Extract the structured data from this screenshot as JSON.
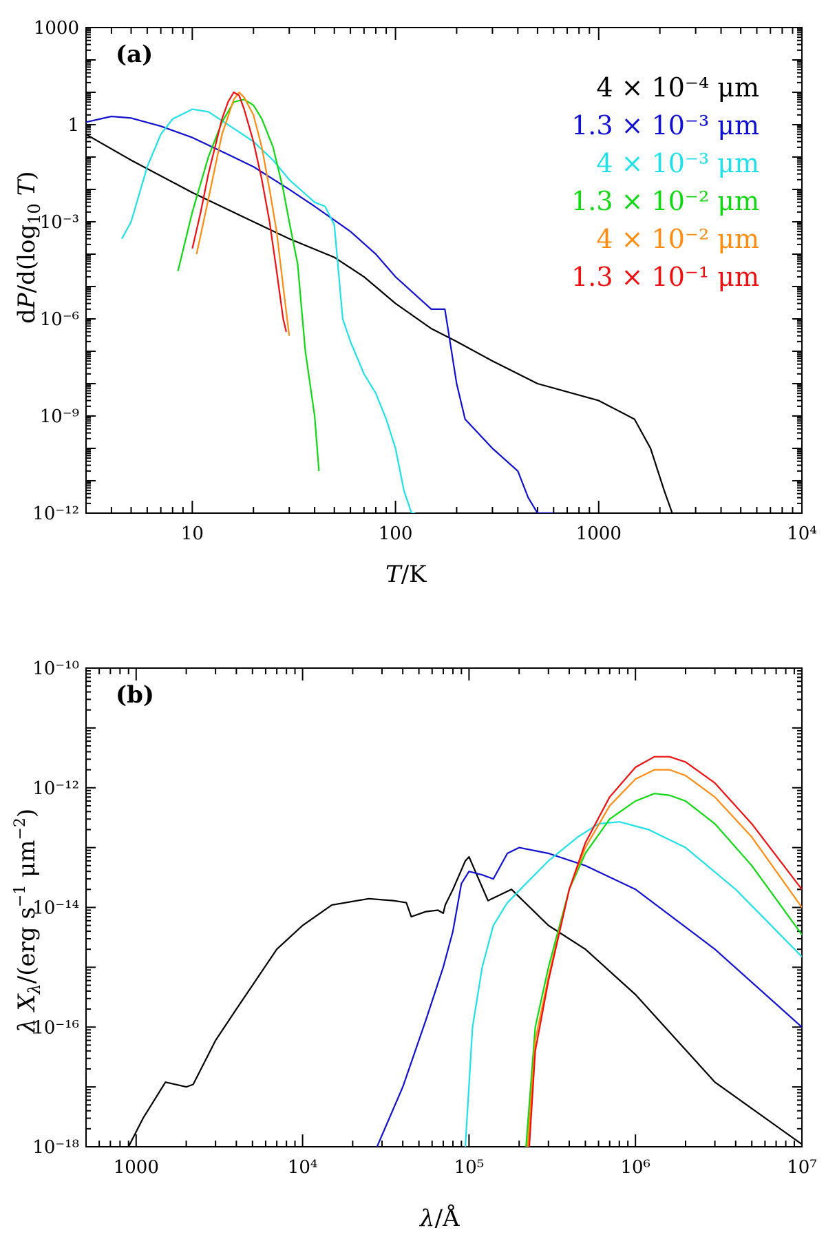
{
  "colors": {
    "black": "#000000",
    "blue": "#1010d0",
    "cyan": "#20e0e8",
    "green": "#10d810",
    "orange": "#ff8c10",
    "red": "#ee1010"
  },
  "chart_data": [
    {
      "type": "line",
      "panel_label": "(a)",
      "xlabel": "T/K",
      "ylabel": "dP/d(log10 T)",
      "xscale": "log",
      "yscale": "log",
      "xlim": [
        3,
        10000
      ],
      "ylim": [
        1e-12,
        1000
      ],
      "x_tick_labels": [
        "10",
        "100",
        "1000",
        "10⁴"
      ],
      "x_tick_values": [
        10,
        100,
        1000,
        10000
      ],
      "y_tick_labels": [
        "10⁻¹²",
        "10⁻⁹",
        "10⁻⁶",
        "10⁻³",
        "1",
        "1000"
      ],
      "y_tick_values": [
        1e-12,
        1e-09,
        1e-06,
        0.001,
        1,
        1000
      ],
      "legend": "top-right",
      "series": [
        {
          "name": "4 × 10⁻⁴ μm",
          "color": "black",
          "x": [
            3,
            5,
            10,
            20,
            30,
            50,
            70,
            100,
            150,
            200,
            300,
            500,
            1000,
            1500,
            1800,
            2100,
            2300
          ],
          "y": [
            0.5,
            0.08,
            0.008,
            0.001,
            0.0003,
            8e-05,
            2e-05,
            3e-06,
            5e-07,
            2e-07,
            5e-08,
            1e-08,
            3e-09,
            8e-10,
            1e-10,
            5e-12,
            1e-12
          ]
        },
        {
          "name": "1.3 × 10⁻³ μm",
          "color": "blue",
          "x": [
            3,
            4,
            5,
            7,
            10,
            15,
            20,
            30,
            40,
            60,
            80,
            100,
            150,
            175,
            200,
            220,
            300,
            400,
            450,
            500,
            600
          ],
          "y": [
            1.2,
            1.8,
            1.6,
            0.9,
            0.4,
            0.12,
            0.05,
            0.01,
            0.003,
            0.0005,
            0.0001,
            2e-05,
            2e-06,
            2e-06,
            1e-08,
            8e-10,
            1e-10,
            2e-11,
            3e-12,
            1e-12,
            1e-12
          ]
        },
        {
          "name": "4 × 10⁻³ μm",
          "color": "cyan",
          "x": [
            4.5,
            5,
            6,
            7,
            8,
            10,
            12,
            15,
            20,
            25,
            30,
            40,
            45,
            50,
            55,
            60,
            70,
            80,
            90,
            100,
            110,
            120,
            125
          ],
          "y": 0,
          "y_values": [
            0.0003,
            0.001,
            0.05,
            0.5,
            1.5,
            3.0,
            2.5,
            1.0,
            0.3,
            0.08,
            0.02,
            0.004,
            0.003,
            0.0008,
            1e-06,
            2e-07,
            2e-08,
            5e-09,
            8e-10,
            1e-10,
            5e-12,
            1e-12,
            1e-12
          ]
        },
        {
          "name": "1.3 × 10⁻² μm",
          "color": "green",
          "x": [
            8.5,
            10,
            12,
            14,
            16,
            18,
            20,
            22,
            25,
            28,
            30,
            33,
            36,
            40,
            42
          ],
          "y": [
            3e-05,
            0.002,
            0.1,
            1.2,
            5,
            6,
            4,
            1.5,
            0.2,
            0.01,
            0.001,
            5e-05,
            1e-07,
            1e-09,
            2e-11
          ]
        },
        {
          "name": "4 × 10⁻² μm",
          "color": "orange",
          "x": [
            10.5,
            12,
            14,
            16,
            17,
            18,
            20,
            22,
            24,
            26,
            28,
            30
          ],
          "y": [
            0.0001,
            0.005,
            0.5,
            6,
            10,
            7,
            2,
            0.2,
            0.01,
            0.0005,
            1e-05,
            3e-07
          ]
        },
        {
          "name": "1.3 × 10⁻¹ μm",
          "color": "red",
          "x": [
            10,
            11,
            12,
            14,
            15,
            16,
            17,
            18,
            20,
            22,
            24,
            26,
            28,
            29
          ],
          "y": [
            0.00015,
            0.002,
            0.03,
            1.5,
            5,
            10,
            8,
            3,
            0.3,
            0.02,
            0.001,
            3e-05,
            1e-06,
            4e-07
          ]
        }
      ]
    },
    {
      "type": "line",
      "panel_label": "(b)",
      "xlabel": "λ/Å",
      "ylabel": "λ Xλ/(erg s⁻¹ μm⁻²)",
      "xscale": "log",
      "yscale": "log",
      "xlim": [
        500,
        10000000
      ],
      "ylim": [
        1e-18,
        1e-10
      ],
      "x_tick_labels": [
        "1000",
        "10⁴",
        "10⁵",
        "10⁶",
        "10⁷"
      ],
      "x_tick_values": [
        1000,
        10000,
        100000,
        1000000,
        10000000
      ],
      "y_tick_labels": [
        "10⁻¹⁸",
        "10⁻¹⁶",
        "10⁻¹⁴",
        "10⁻¹²",
        "10⁻¹⁰"
      ],
      "y_tick_values": [
        1e-18,
        1e-16,
        1e-14,
        1e-12,
        1e-10
      ],
      "series": [
        {
          "name": "4 × 10⁻⁴ μm",
          "color": "black",
          "x": [
            900,
            1100,
            1500,
            2000,
            2200,
            3000,
            4000,
            5000,
            7000,
            10000,
            15000,
            25000,
            35000,
            42000,
            45000,
            55000,
            65000,
            70000,
            72000,
            80000,
            95000,
            100000,
            130000,
            180000,
            200000,
            300000,
            500000,
            1000000,
            3000000,
            10000000
          ],
          "y": [
            1e-18,
            3e-18,
            1.2e-17,
            1e-17,
            1.1e-17,
            6e-17,
            2e-16,
            5e-16,
            2e-15,
            5e-15,
            1.1e-14,
            1.4e-14,
            1.3e-14,
            1.2e-14,
            7e-15,
            8.5e-15,
            9e-15,
            8e-15,
            1.1e-14,
            2e-14,
            6e-14,
            7e-14,
            1.3e-14,
            2e-14,
            1.5e-14,
            5e-15,
            2e-15,
            3.5e-16,
            1.2e-17,
            1.1e-18
          ]
        },
        {
          "name": "1.3 × 10⁻³ μm",
          "color": "blue",
          "x": [
            28000,
            40000,
            55000,
            70000,
            80000,
            90000,
            100000,
            120000,
            140000,
            170000,
            200000,
            300000,
            500000,
            1000000,
            3000000,
            10000000
          ],
          "y": [
            1e-18,
            1e-17,
            1.3e-16,
            1e-15,
            4e-15,
            2.5e-14,
            4e-14,
            3.5e-14,
            3e-14,
            8e-14,
            1e-13,
            8e-14,
            5e-14,
            2e-14,
            2e-15,
            1e-16
          ]
        },
        {
          "name": "4 × 10⁻³ μm",
          "color": "cyan",
          "x": [
            95000,
            105000,
            120000,
            140000,
            170000,
            220000,
            300000,
            450000,
            600000,
            800000,
            1200000,
            2000000,
            4000000,
            10000000
          ],
          "y": [
            1e-18,
            1e-16,
            1e-15,
            5e-15,
            1.2e-14,
            2.5e-14,
            6e-14,
            1.5e-13,
            2.5e-13,
            2.7e-13,
            2e-13,
            1e-13,
            2e-14,
            1.5e-15
          ]
        },
        {
          "name": "1.3 × 10⁻² μm",
          "color": "green",
          "x": [
            220000,
            250000,
            300000,
            400000,
            500000,
            700000,
            1000000,
            1300000,
            1600000,
            2000000,
            3000000,
            5000000,
            10000000
          ],
          "y": [
            1e-18,
            1e-16,
            1e-15,
            2e-14,
            8e-14,
            3e-13,
            6e-13,
            8e-13,
            7.5e-13,
            6e-13,
            2.5e-13,
            5e-14,
            3.5e-15
          ]
        },
        {
          "name": "4 × 10⁻² μm",
          "color": "orange",
          "x": [
            225000,
            250000,
            300000,
            400000,
            500000,
            700000,
            1000000,
            1300000,
            1600000,
            2000000,
            3000000,
            5000000,
            10000000
          ],
          "y": [
            1e-18,
            6e-17,
            7e-16,
            2e-14,
            1e-13,
            5e-13,
            1.4e-12,
            2e-12,
            2e-12,
            1.6e-12,
            7e-13,
            1.5e-13,
            1e-14
          ]
        },
        {
          "name": "1.3 × 10⁻¹ μm",
          "color": "red",
          "x": [
            230000,
            250000,
            300000,
            400000,
            500000,
            700000,
            1000000,
            1300000,
            1600000,
            2000000,
            3000000,
            5000000,
            10000000
          ],
          "y": [
            1e-18,
            4e-17,
            6e-16,
            2e-14,
            1.2e-13,
            7e-13,
            2.2e-12,
            3.3e-12,
            3.3e-12,
            2.7e-12,
            1.2e-12,
            2.5e-13,
            2e-14
          ]
        }
      ]
    }
  ]
}
